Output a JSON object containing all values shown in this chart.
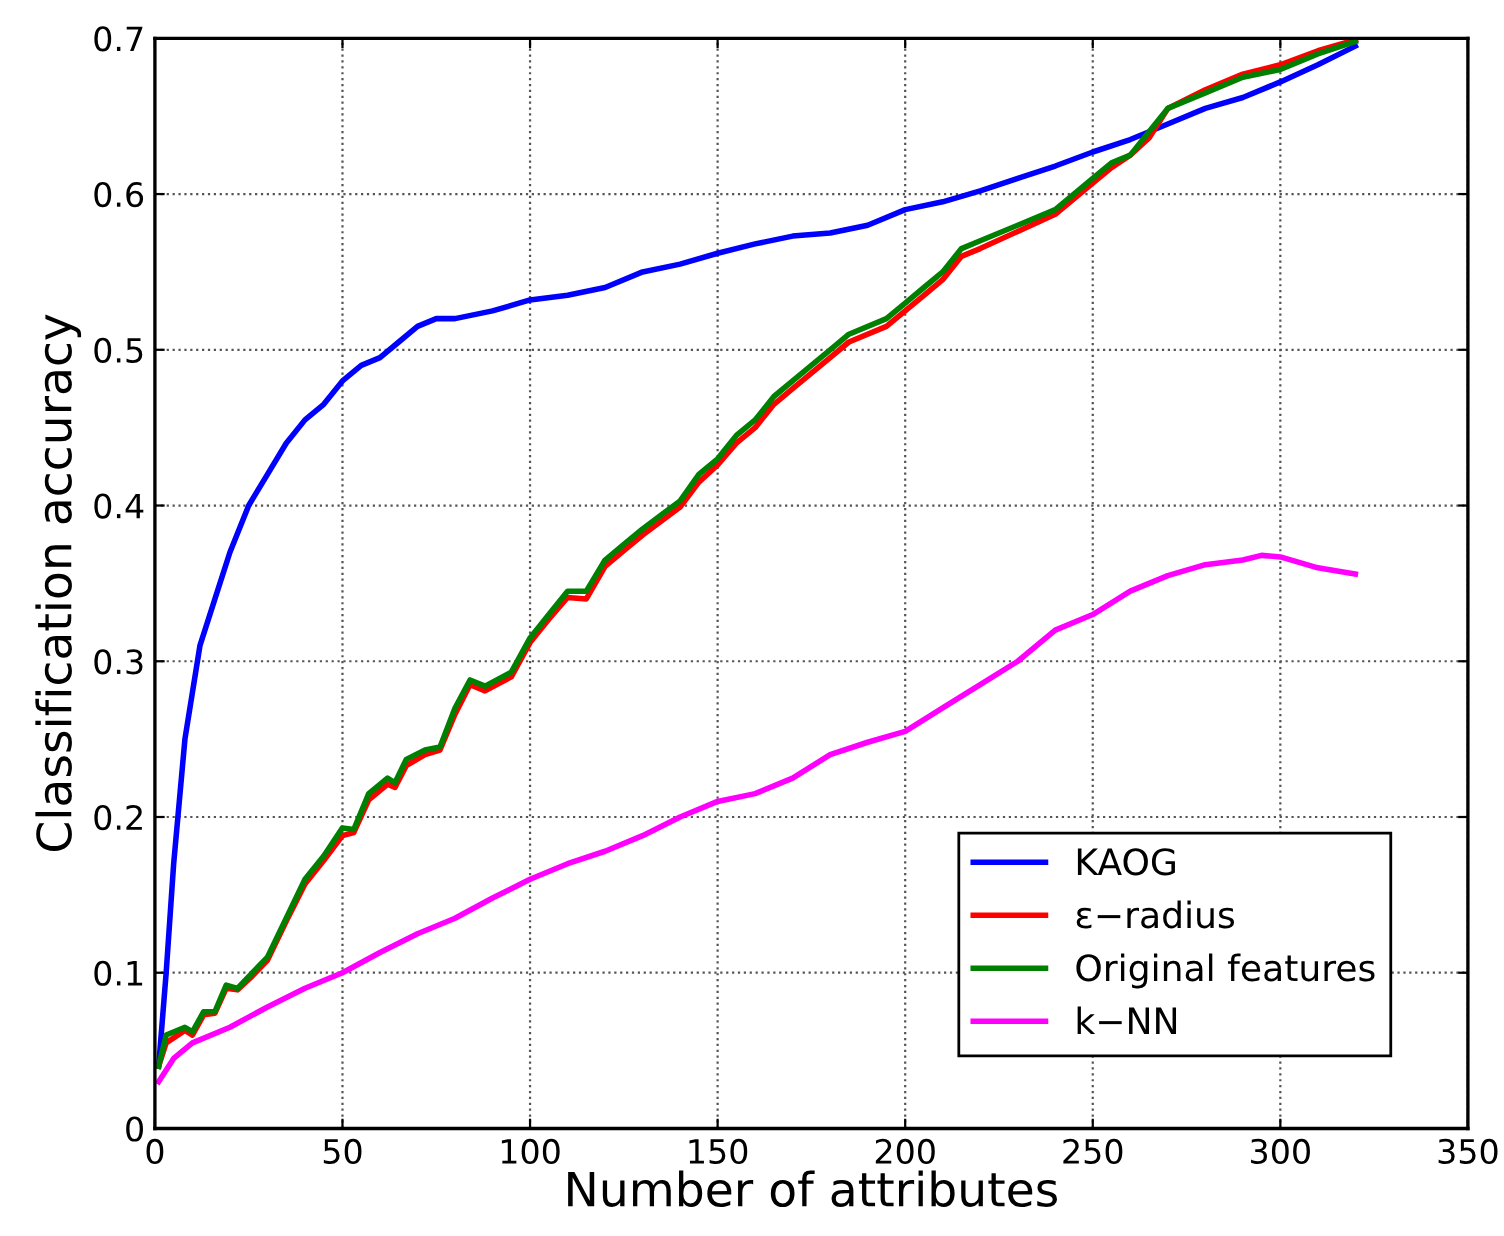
{
  "chart_data": {
    "type": "line",
    "xlabel": "Number of attributes",
    "ylabel": "Classification accuracy",
    "xlim": [
      0,
      350
    ],
    "ylim": [
      0,
      0.7
    ],
    "xticks": [
      0,
      50,
      100,
      150,
      200,
      250,
      300,
      350
    ],
    "yticks": [
      0,
      0.1,
      0.2,
      0.3,
      0.4,
      0.5,
      0.6,
      0.7
    ],
    "grid": true,
    "legend": "bottom right",
    "line_style": "solid",
    "marker": "none",
    "series": [
      {
        "name": "KAOG",
        "color": "#0000ff",
        "x": [
          1,
          3,
          5,
          8,
          12,
          16,
          20,
          25,
          30,
          35,
          40,
          45,
          50,
          55,
          60,
          65,
          70,
          75,
          80,
          90,
          100,
          110,
          120,
          130,
          140,
          150,
          160,
          170,
          180,
          190,
          200,
          210,
          220,
          230,
          240,
          250,
          260,
          270,
          280,
          290,
          300,
          310,
          320
        ],
        "values": [
          0.04,
          0.1,
          0.17,
          0.25,
          0.31,
          0.34,
          0.37,
          0.4,
          0.42,
          0.44,
          0.455,
          0.465,
          0.48,
          0.49,
          0.495,
          0.505,
          0.515,
          0.52,
          0.52,
          0.525,
          0.532,
          0.535,
          0.54,
          0.55,
          0.555,
          0.562,
          0.568,
          0.573,
          0.575,
          0.58,
          0.59,
          0.595,
          0.602,
          0.61,
          0.618,
          0.627,
          0.635,
          0.645,
          0.655,
          0.662,
          0.672,
          0.683,
          0.695
        ]
      },
      {
        "name": "ε−radius",
        "color": "#ff0000",
        "x": [
          1,
          3,
          8,
          10,
          13,
          16,
          19,
          22,
          26,
          30,
          35,
          40,
          45,
          50,
          53,
          57,
          62,
          64,
          67,
          72,
          76,
          80,
          84,
          88,
          95,
          100,
          105,
          110,
          115,
          120,
          125,
          130,
          140,
          145,
          150,
          155,
          160,
          165,
          170,
          175,
          180,
          185,
          195,
          200,
          205,
          210,
          215,
          220,
          230,
          240,
          250,
          255,
          260,
          265,
          270,
          280,
          290,
          300,
          310,
          320
        ],
        "values": [
          0.04,
          0.055,
          0.063,
          0.06,
          0.073,
          0.074,
          0.09,
          0.089,
          0.098,
          0.108,
          0.133,
          0.157,
          0.172,
          0.188,
          0.19,
          0.211,
          0.221,
          0.219,
          0.233,
          0.24,
          0.243,
          0.266,
          0.285,
          0.281,
          0.29,
          0.312,
          0.327,
          0.341,
          0.34,
          0.361,
          0.371,
          0.381,
          0.399,
          0.415,
          0.426,
          0.44,
          0.45,
          0.465,
          0.475,
          0.485,
          0.495,
          0.505,
          0.515,
          0.525,
          0.535,
          0.545,
          0.56,
          0.565,
          0.576,
          0.587,
          0.607,
          0.617,
          0.625,
          0.636,
          0.655,
          0.667,
          0.677,
          0.683,
          0.692,
          0.699
        ]
      },
      {
        "name": "Original features",
        "color": "#008000",
        "x": [
          1,
          3,
          8,
          10,
          13,
          16,
          19,
          22,
          26,
          30,
          35,
          40,
          45,
          50,
          53,
          57,
          62,
          64,
          67,
          72,
          76,
          80,
          84,
          88,
          95,
          100,
          105,
          110,
          115,
          120,
          125,
          130,
          140,
          145,
          150,
          155,
          160,
          165,
          170,
          175,
          180,
          185,
          195,
          200,
          205,
          210,
          215,
          220,
          230,
          240,
          250,
          255,
          260,
          265,
          270,
          280,
          290,
          300,
          310,
          320
        ],
        "values": [
          0.04,
          0.06,
          0.065,
          0.062,
          0.075,
          0.075,
          0.092,
          0.09,
          0.1,
          0.11,
          0.135,
          0.16,
          0.175,
          0.193,
          0.192,
          0.215,
          0.225,
          0.222,
          0.237,
          0.243,
          0.245,
          0.27,
          0.288,
          0.284,
          0.293,
          0.315,
          0.33,
          0.345,
          0.345,
          0.365,
          0.375,
          0.385,
          0.403,
          0.42,
          0.43,
          0.445,
          0.455,
          0.47,
          0.48,
          0.49,
          0.5,
          0.51,
          0.52,
          0.53,
          0.54,
          0.55,
          0.565,
          0.57,
          0.58,
          0.59,
          0.61,
          0.62,
          0.625,
          0.64,
          0.655,
          0.665,
          0.675,
          0.68,
          0.69,
          0.698
        ]
      },
      {
        "name": "k−NN",
        "color": "#ff00ff",
        "x": [
          1,
          5,
          10,
          20,
          30,
          40,
          50,
          60,
          70,
          80,
          90,
          100,
          110,
          120,
          130,
          140,
          150,
          160,
          170,
          180,
          190,
          200,
          210,
          220,
          230,
          240,
          250,
          260,
          270,
          280,
          290,
          295,
          300,
          310,
          320
        ],
        "values": [
          0.03,
          0.045,
          0.055,
          0.065,
          0.078,
          0.09,
          0.1,
          0.113,
          0.125,
          0.135,
          0.148,
          0.16,
          0.17,
          0.178,
          0.188,
          0.2,
          0.21,
          0.215,
          0.225,
          0.24,
          0.248,
          0.255,
          0.27,
          0.285,
          0.3,
          0.32,
          0.33,
          0.345,
          0.355,
          0.362,
          0.365,
          0.368,
          0.367,
          0.36,
          0.356
        ]
      }
    ]
  }
}
